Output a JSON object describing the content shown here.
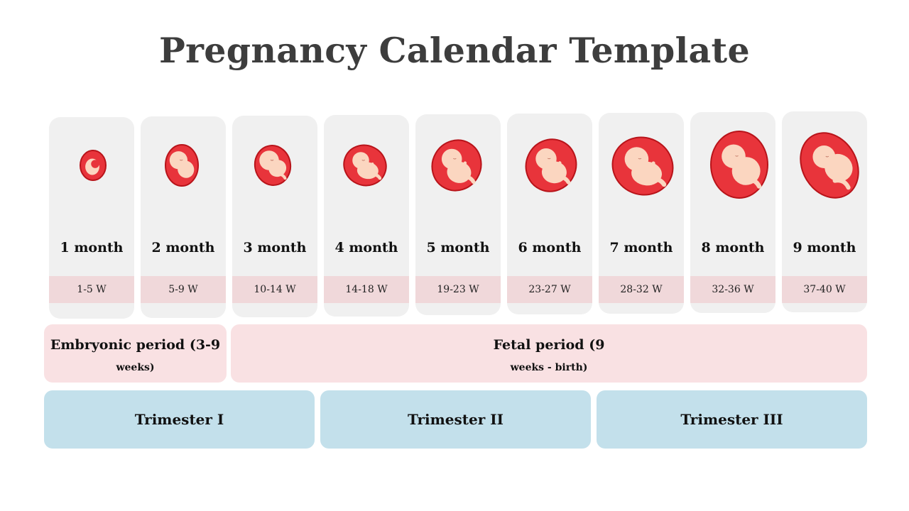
{
  "title": "Pregnancy Calendar Template",
  "colors": {
    "card_bg": "#f0f0f0",
    "weeks_band": "#f0d8da",
    "period_bg": "#f9e1e3",
    "trimester_bg": "#c3e0eb",
    "womb_red": "#e8343b",
    "womb_outline": "#b8141a",
    "fetus_skin": "#fbd6c0"
  },
  "months": [
    {
      "label": "1 month",
      "weeks": "1-5 W",
      "icon": "fetus-month-1-icon",
      "stage": 1
    },
    {
      "label": "2 month",
      "weeks": "5-9 W",
      "icon": "fetus-month-2-icon",
      "stage": 2
    },
    {
      "label": "3 month",
      "weeks": "10-14 W",
      "icon": "fetus-month-3-icon",
      "stage": 3
    },
    {
      "label": "4 month",
      "weeks": "14-18 W",
      "icon": "fetus-month-4-icon",
      "stage": 4
    },
    {
      "label": "5 month",
      "weeks": "19-23 W",
      "icon": "fetus-month-5-icon",
      "stage": 5
    },
    {
      "label": "6 month",
      "weeks": "23-27 W",
      "icon": "fetus-month-6-icon",
      "stage": 6
    },
    {
      "label": "7 month",
      "weeks": "28-32 W",
      "icon": "fetus-month-7-icon",
      "stage": 7
    },
    {
      "label": "8 month",
      "weeks": "32-36 W",
      "icon": "fetus-month-8-icon",
      "stage": 8
    },
    {
      "label": "9 month",
      "weeks": "37-40 W",
      "icon": "fetus-month-9-icon",
      "stage": 9
    }
  ],
  "periods": [
    {
      "line1": "Embryonic period (3-9",
      "line2": "weeks)"
    },
    {
      "line1": "Fetal period (9",
      "line2": "weeks - birth)"
    }
  ],
  "trimesters": [
    "Trimester I",
    "Trimester II",
    "Trimester III"
  ]
}
